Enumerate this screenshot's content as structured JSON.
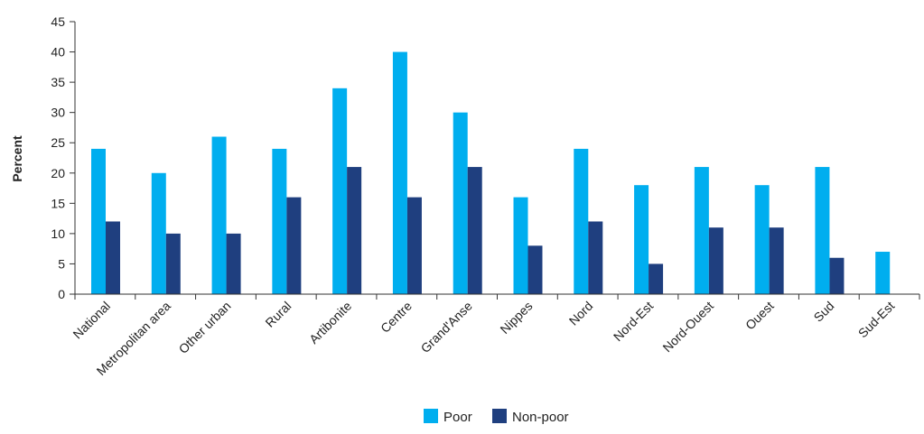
{
  "chart_data": {
    "type": "bar",
    "title": "",
    "xlabel": "",
    "ylabel": "Percent",
    "ylim": [
      0,
      45
    ],
    "yticks": [
      0,
      5,
      10,
      15,
      20,
      25,
      30,
      35,
      40,
      45
    ],
    "grid": false,
    "legend_position": "bottom-center",
    "categories": [
      "National",
      "Metropolitan area",
      "Other urban",
      "Rural",
      "Artibonite",
      "Centre",
      "Grand'Anse",
      "Nippes",
      "Nord",
      "Nord-Est",
      "Nord-Ouest",
      "Ouest",
      "Sud",
      "Sud-Est"
    ],
    "series": [
      {
        "name": "Poor",
        "color": "#00AEEF",
        "values": [
          24,
          20,
          26,
          24,
          34,
          40,
          30,
          16,
          24,
          18,
          21,
          18,
          21,
          7
        ]
      },
      {
        "name": "Non-poor",
        "color": "#1F3F7F",
        "values": [
          12,
          10,
          10,
          16,
          21,
          16,
          21,
          8,
          12,
          5,
          11,
          11,
          6,
          0
        ]
      }
    ]
  }
}
